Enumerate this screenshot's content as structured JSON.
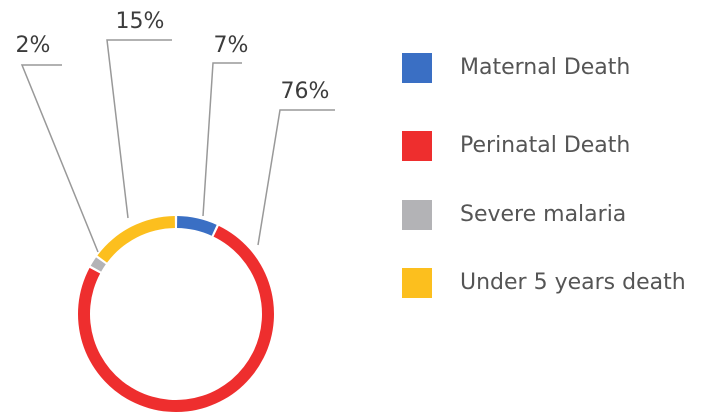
{
  "chart_data": {
    "type": "donut",
    "categories": [
      "Maternal Death",
      "Perinatal Death",
      "Severe malaria",
      "Under 5 years death"
    ],
    "values": [
      7,
      76,
      2,
      15
    ],
    "value_labels": [
      "7%",
      "76%",
      "2%",
      "15%"
    ],
    "colors": [
      "#3a6fc4",
      "#ee2e2e",
      "#b3b3b6",
      "#fcbf1e"
    ],
    "legend": "right"
  }
}
